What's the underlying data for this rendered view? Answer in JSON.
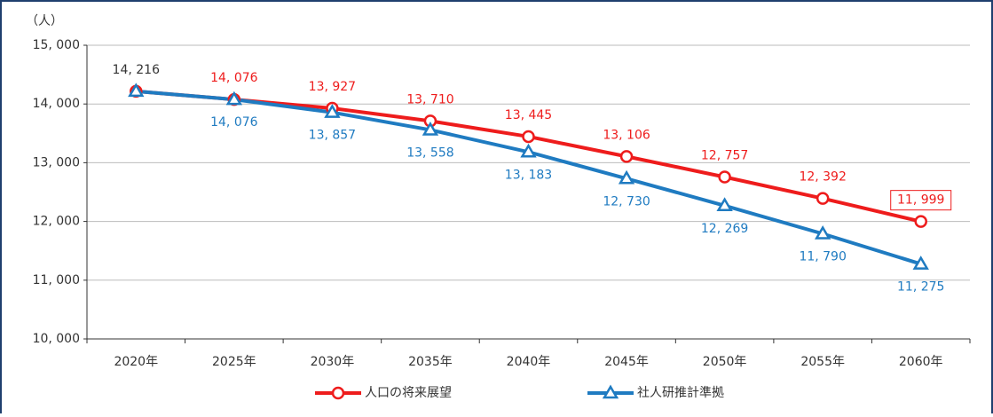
{
  "chart_data": {
    "type": "line",
    "y_label": "（人）",
    "categories": [
      "2020年",
      "2025年",
      "2030年",
      "2035年",
      "2040年",
      "2045年",
      "2050年",
      "2055年",
      "2060年"
    ],
    "series": [
      {
        "name": "人口の将来展望",
        "color": "#ee1c1c",
        "values": [
          14216,
          14076,
          13927,
          13710,
          13445,
          13106,
          12757,
          12392,
          11999
        ],
        "value_labels": [
          "14, 216",
          "14, 076",
          "13, 927",
          "13, 710",
          "13, 445",
          "13, 106",
          "12, 757",
          "12, 392",
          "11, 999"
        ]
      },
      {
        "name": "社人研推計準拠",
        "color": "#1f7bc1",
        "values": [
          14216,
          14076,
          13857,
          13558,
          13183,
          12730,
          12269,
          11790,
          11275
        ],
        "value_labels": [
          null,
          "14, 076",
          "13, 857",
          "13, 558",
          "13, 183",
          "12, 730",
          "12, 269",
          "11, 790",
          "11, 275"
        ]
      }
    ],
    "ylim": [
      10000,
      15000
    ],
    "yticks": [
      {
        "value": 10000,
        "label": "10, 000"
      },
      {
        "value": 11000,
        "label": "11, 000"
      },
      {
        "value": 12000,
        "label": "12, 000"
      },
      {
        "value": 13000,
        "label": "13, 000"
      },
      {
        "value": 14000,
        "label": "14, 000"
      },
      {
        "value": 15000,
        "label": "15, 000"
      }
    ],
    "grid": true
  }
}
